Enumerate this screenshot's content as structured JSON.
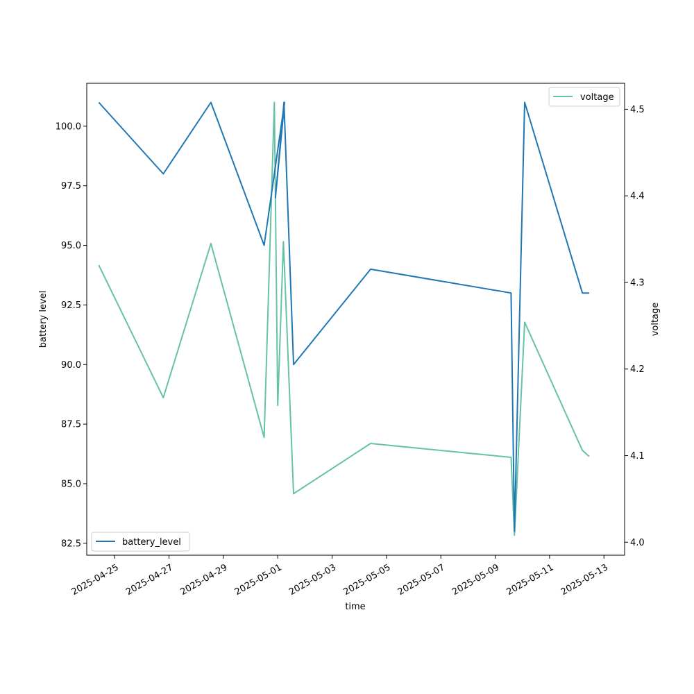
{
  "chart_data": {
    "type": "line",
    "xlabel": "time",
    "x_tick_labels": [
      "2025-04-25",
      "2025-04-27",
      "2025-04-29",
      "2025-05-01",
      "2025-05-03",
      "2025-05-05",
      "2025-05-07",
      "2025-05-09",
      "2025-05-11",
      "2025-05-13"
    ],
    "left_axis": {
      "label": "battery level",
      "ylim": [
        82.0,
        101.8
      ],
      "ticks": [
        "82.5",
        "85.0",
        "87.5",
        "90.0",
        "92.5",
        "95.0",
        "97.5",
        "100.0"
      ]
    },
    "right_axis": {
      "label": "voltage",
      "ylim": [
        3.985,
        4.53
      ],
      "ticks": [
        "4.0",
        "4.1",
        "4.2",
        "4.3",
        "4.4",
        "4.5"
      ]
    },
    "series": [
      {
        "name": "battery_level",
        "axis": "left",
        "color": "#1f77b4",
        "x": [
          "2025-04-24T10:00",
          "2025-04-26T19:00",
          "2025-04-28T13:00",
          "2025-04-30T12:00",
          "2025-05-01T06:00",
          "2025-04-30T22:00",
          "2025-05-01T05:30",
          "2025-05-01T14:00",
          "2025-05-04T10:00",
          "2025-05-09T14:00",
          "2025-05-09T17:00",
          "2025-05-10T02:00",
          "2025-05-12T05:00",
          "2025-05-12T11:00"
        ],
        "values": [
          101,
          98,
          101,
          95,
          101,
          97,
          101,
          90,
          94,
          93,
          83,
          101,
          93,
          93
        ]
      },
      {
        "name": "voltage",
        "axis": "right",
        "color": "#66c2a5",
        "x": [
          "2025-04-24T10:00",
          "2025-04-26T19:00",
          "2025-04-28T13:00",
          "2025-04-30T12:00",
          "2025-04-30T21:00",
          "2025-05-01T00:00",
          "2025-05-01T05:00",
          "2025-05-01T14:00",
          "2025-05-04T10:00",
          "2025-05-09T14:00",
          "2025-05-09T17:00",
          "2025-05-10T02:00",
          "2025-05-12T05:00",
          "2025-05-12T11:00"
        ],
        "values": [
          4.32,
          4.167,
          4.345,
          4.121,
          4.508,
          4.158,
          4.347,
          4.056,
          4.114,
          4.098,
          4.008,
          4.254,
          4.106,
          4.099
        ]
      }
    ],
    "legend": [
      {
        "label": "battery_level",
        "placement": "lower-left"
      },
      {
        "label": "voltage",
        "placement": "upper-right"
      }
    ],
    "grid": false
  }
}
